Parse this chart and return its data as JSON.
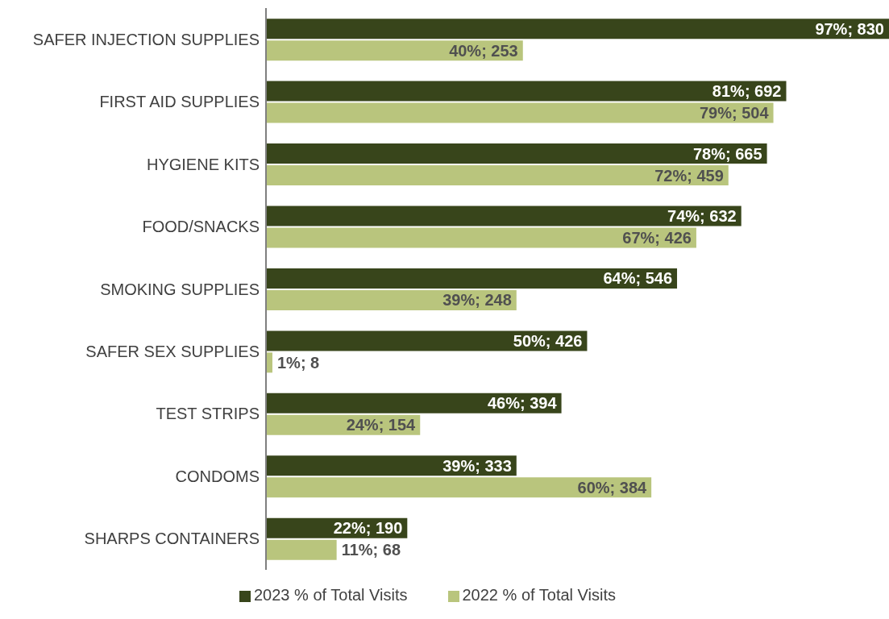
{
  "chart_data": {
    "type": "bar",
    "orientation": "horizontal",
    "categories": [
      "SAFER INJECTION SUPPLIES",
      "FIRST AID SUPPLIES",
      "HYGIENE KITS",
      "FOOD/SNACKS",
      "SMOKING SUPPLIES",
      "SAFER SEX SUPPLIES",
      "TEST STRIPS",
      "CONDOMS",
      "SHARPS CONTAINERS"
    ],
    "series": [
      {
        "name": "2023 % of Total Visits",
        "color": "#38451b",
        "values": [
          97,
          81,
          78,
          74,
          64,
          50,
          46,
          39,
          22
        ],
        "value_labels": [
          "97%; 830",
          "81%; 692",
          "78%; 665",
          "74%; 632",
          "64%; 546",
          "50%; 426",
          "46%; 394",
          "39%; 333",
          "22%; 190"
        ]
      },
      {
        "name": "2022 % of Total Visits",
        "color": "#b9c57d",
        "values": [
          40,
          79,
          72,
          67,
          39,
          1,
          24,
          60,
          11
        ],
        "value_labels": [
          "40%; 253",
          "79%; 504",
          "72%; 459",
          "67%; 426",
          "39%; 248",
          "1%; 8",
          "24%; 154",
          "60%; 384",
          "11%; 68"
        ]
      }
    ],
    "legend": "bottom"
  }
}
